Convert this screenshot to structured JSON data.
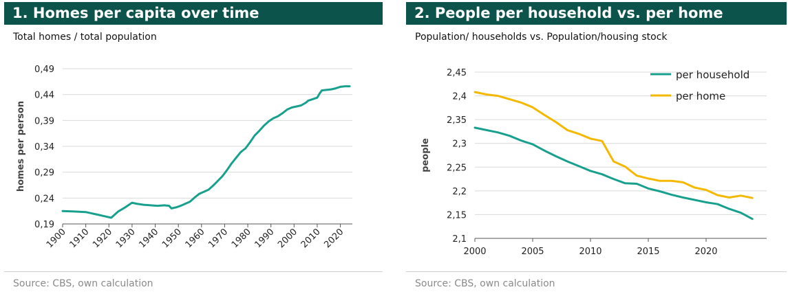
{
  "charts": [
    {
      "title": "1. Homes per capita over time",
      "subtitle": "Total homes / total population",
      "source": "Source: CBS, own calculation"
    },
    {
      "title": "2. People per household vs. per home",
      "subtitle": "Population/ households vs. Population/housing stock",
      "source": "Source: CBS, own calculation"
    }
  ],
  "colors": {
    "header_bg": "#0c534b",
    "teal": "#17a08d",
    "yellow": "#f5b800",
    "grid": "#d9d9d9"
  },
  "chart_data": [
    {
      "type": "line",
      "title": "1. Homes per capita over time",
      "subtitle": "Total homes / total population",
      "xlabel": "",
      "ylabel": "homes per person",
      "xlim": [
        1900,
        2024
      ],
      "ylim": [
        0.19,
        0.49
      ],
      "x_ticks": [
        1900,
        1910,
        1920,
        1930,
        1940,
        1950,
        1960,
        1970,
        1980,
        1990,
        2000,
        2010,
        2020
      ],
      "y_ticks": [
        "0,19",
        "0,24",
        "0,29",
        "0,34",
        "0,39",
        "0,44",
        "0,49"
      ],
      "y_tick_values": [
        0.19,
        0.24,
        0.29,
        0.34,
        0.39,
        0.44,
        0.49
      ],
      "grid": "horizontal",
      "legend": "none",
      "series": [
        {
          "color": "#17a08d",
          "x": [
            1900,
            1905,
            1910,
            1912,
            1915,
            1918,
            1921,
            1924,
            1927,
            1930,
            1932,
            1935,
            1938,
            1941,
            1944,
            1946,
            1947,
            1949,
            1951,
            1953,
            1955,
            1957,
            1959,
            1961,
            1963,
            1965,
            1967,
            1969,
            1971,
            1973,
            1975,
            1977,
            1979,
            1981,
            1983,
            1985,
            1987,
            1989,
            1991,
            1993,
            1995,
            1997,
            1999,
            2001,
            2003,
            2005,
            2006,
            2008,
            2010,
            2011,
            2012,
            2014,
            2016,
            2018,
            2020,
            2022,
            2024
          ],
          "y": [
            0.215,
            0.214,
            0.213,
            0.211,
            0.208,
            0.205,
            0.202,
            0.214,
            0.222,
            0.231,
            0.229,
            0.227,
            0.226,
            0.225,
            0.226,
            0.225,
            0.22,
            0.222,
            0.225,
            0.229,
            0.233,
            0.241,
            0.248,
            0.252,
            0.256,
            0.264,
            0.273,
            0.282,
            0.294,
            0.307,
            0.318,
            0.329,
            0.336,
            0.348,
            0.361,
            0.37,
            0.38,
            0.388,
            0.394,
            0.398,
            0.404,
            0.411,
            0.415,
            0.417,
            0.419,
            0.424,
            0.428,
            0.431,
            0.434,
            0.442,
            0.448,
            0.449,
            0.45,
            0.452,
            0.455,
            0.456,
            0.456
          ]
        }
      ]
    },
    {
      "type": "line",
      "title": "2. People per household vs. per home",
      "subtitle": "Population/ households vs. Population/housing stock",
      "xlabel": "",
      "ylabel": "people",
      "xlim": [
        2000,
        2025
      ],
      "ylim": [
        2.1,
        2.45
      ],
      "x_ticks": [
        2000,
        2005,
        2010,
        2015,
        2020
      ],
      "y_ticks": [
        "2,1",
        "2,15",
        "2,2",
        "2,25",
        "2,3",
        "2,35",
        "2,4",
        "2,45"
      ],
      "y_tick_values": [
        2.1,
        2.15,
        2.2,
        2.25,
        2.3,
        2.35,
        2.4,
        2.45
      ],
      "grid": "horizontal",
      "legend": "top-right",
      "series": [
        {
          "name": "per household",
          "color": "#17a08d",
          "x": [
            2000,
            2001,
            2002,
            2003,
            2004,
            2005,
            2006,
            2007,
            2008,
            2009,
            2010,
            2011,
            2012,
            2013,
            2014,
            2015,
            2016,
            2017,
            2018,
            2019,
            2020,
            2021,
            2022,
            2023,
            2024
          ],
          "y": [
            2.333,
            2.328,
            2.323,
            2.316,
            2.306,
            2.298,
            2.285,
            2.273,
            2.262,
            2.252,
            2.242,
            2.235,
            2.225,
            2.216,
            2.215,
            2.205,
            2.199,
            2.192,
            2.186,
            2.181,
            2.176,
            2.172,
            2.162,
            2.154,
            2.141
          ]
        },
        {
          "name": "per home",
          "color": "#f5b800",
          "x": [
            2000,
            2001,
            2002,
            2003,
            2004,
            2005,
            2006,
            2007,
            2008,
            2009,
            2010,
            2011,
            2012,
            2013,
            2014,
            2015,
            2016,
            2017,
            2018,
            2019,
            2020,
            2021,
            2022,
            2023,
            2024
          ],
          "y": [
            2.408,
            2.403,
            2.4,
            2.393,
            2.386,
            2.376,
            2.36,
            2.345,
            2.328,
            2.32,
            2.31,
            2.305,
            2.262,
            2.251,
            2.232,
            2.226,
            2.221,
            2.221,
            2.218,
            2.207,
            2.202,
            2.191,
            2.186,
            2.19,
            2.185
          ]
        }
      ]
    }
  ]
}
